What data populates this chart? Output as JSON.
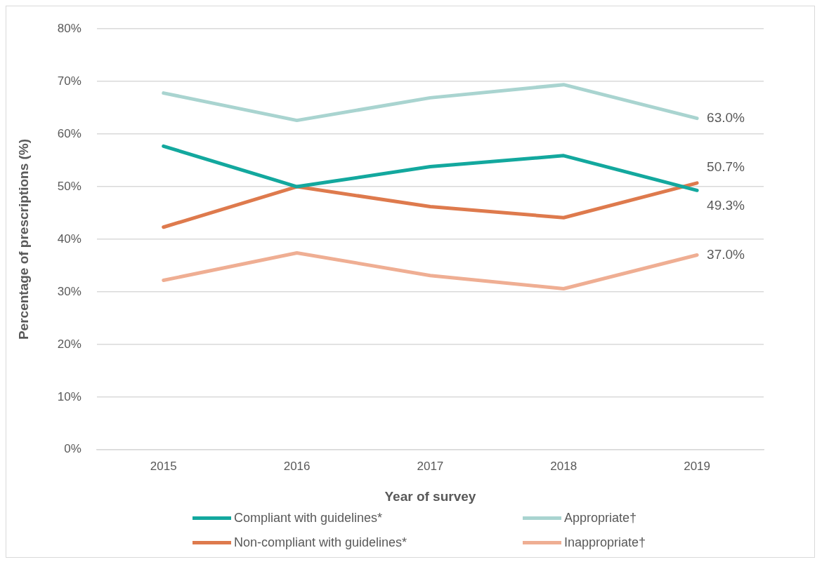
{
  "chart_data": {
    "type": "line",
    "xlabel": "Year of survey",
    "ylabel": "Percentage of prescriptions (%)",
    "categories": [
      "2015",
      "2016",
      "2017",
      "2018",
      "2019"
    ],
    "series": [
      {
        "name": "Compliant with guidelines*",
        "color": "#13a89e",
        "values": [
          57.7,
          50.0,
          53.8,
          55.9,
          49.3
        ],
        "value_labels": [
          null,
          null,
          null,
          null,
          "49.3%"
        ]
      },
      {
        "name": "Appropriate†",
        "color": "#a9d4d0",
        "values": [
          67.8,
          62.6,
          66.9,
          69.4,
          63.0
        ],
        "value_labels": [
          null,
          null,
          null,
          null,
          "63.0%"
        ]
      },
      {
        "name": "Non-compliant with guidelines*",
        "color": "#de7a4d",
        "values": [
          42.3,
          50.0,
          46.2,
          44.1,
          50.7
        ],
        "value_labels": [
          null,
          null,
          null,
          null,
          "50.7%"
        ]
      },
      {
        "name": "Inappropriate†",
        "color": "#efae93",
        "values": [
          32.2,
          37.4,
          33.1,
          30.6,
          37.0
        ],
        "value_labels": [
          null,
          null,
          null,
          null,
          "37.0%"
        ]
      }
    ],
    "ylim": [
      0,
      80
    ],
    "yticks": [
      {
        "value": 0,
        "label": "0%"
      },
      {
        "value": 10,
        "label": "10%"
      },
      {
        "value": 20,
        "label": "20%"
      },
      {
        "value": 30,
        "label": "30%"
      },
      {
        "value": 40,
        "label": "40%"
      },
      {
        "value": 50,
        "label": "50%"
      },
      {
        "value": 60,
        "label": "60%"
      },
      {
        "value": 70,
        "label": "70%"
      },
      {
        "value": 80,
        "label": "80%"
      }
    ],
    "grid": "y",
    "legend": "bottom",
    "marker": "none",
    "line_style": "solid"
  }
}
